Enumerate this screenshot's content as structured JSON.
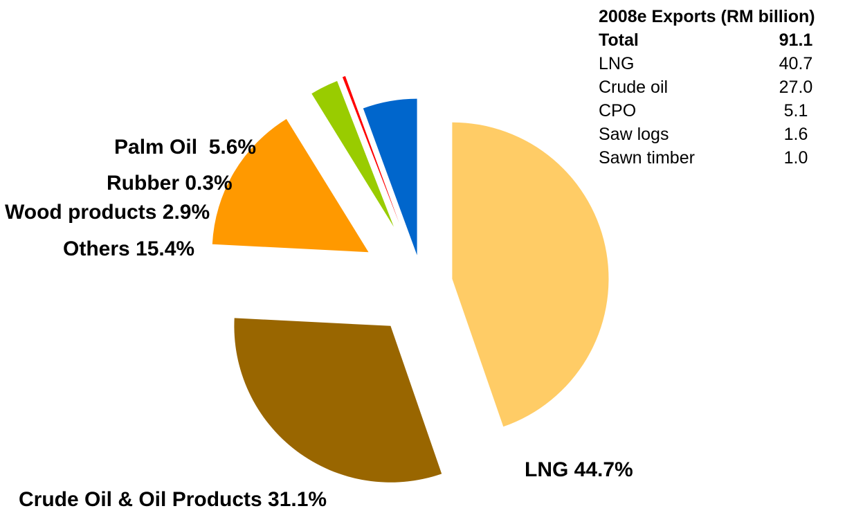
{
  "chart_data": {
    "type": "pie",
    "slices": [
      {
        "label": "LNG 44.7%",
        "value": 44.7,
        "color": "#FFCC66"
      },
      {
        "label": "Crude Oil & Oil Products 31.1%",
        "value": 31.1,
        "color": "#996600"
      },
      {
        "label": "Others 15.4%",
        "value": 15.4,
        "color": "#FF9900"
      },
      {
        "label": "Wood products 2.9%",
        "value": 2.9,
        "color": "#99CC00"
      },
      {
        "label": "Rubber 0.3%",
        "value": 0.3,
        "color": "#FF0000"
      },
      {
        "label": "Palm Oil  5.6%",
        "value": 5.6,
        "color": "#0066CC"
      }
    ]
  },
  "table": {
    "title": "2008e Exports (RM billion)",
    "rows": [
      {
        "label": "Total",
        "value": "91.1",
        "bold": true
      },
      {
        "label": "LNG",
        "value": "40.7"
      },
      {
        "label": "Crude oil",
        "value": "27.0"
      },
      {
        "label": "CPO",
        "value": "5.1"
      },
      {
        "label": "Saw logs",
        "value": "1.6"
      },
      {
        "label": "Sawn timber",
        "value": "1.0"
      }
    ]
  }
}
